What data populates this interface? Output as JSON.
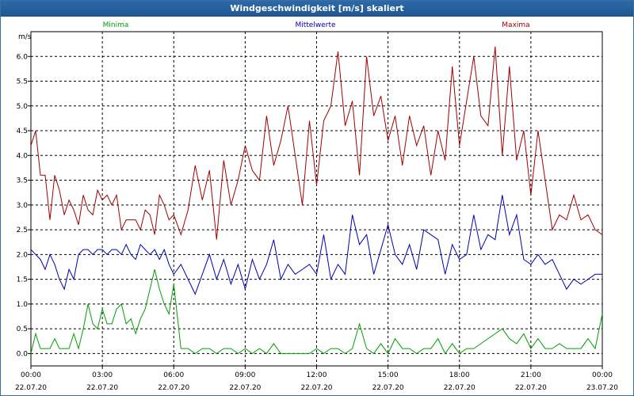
{
  "window": {
    "title": "Windgeschwindigkeit [m/s] skaliert"
  },
  "colors": {
    "minima": "#00a000",
    "mittel": "#0000b0",
    "maxima": "#a00000",
    "grid": "#000000"
  },
  "chart_data": {
    "type": "line",
    "title": "Windgeschwindigkeit [m/s] skaliert",
    "ylabel": "m/s",
    "xlabel": "",
    "ylim": [
      -0.25,
      6.5
    ],
    "yticks": [
      0.0,
      0.5,
      1.0,
      1.5,
      2.0,
      2.5,
      3.0,
      3.5,
      4.0,
      4.5,
      5.0,
      5.5,
      6.0
    ],
    "ytick_labels": [
      "0.0",
      "0.5",
      "1.0",
      "1.5",
      "2.0",
      "2.5",
      "3.0",
      "3.5",
      "4.0",
      "4.5",
      "5.0",
      "5.5",
      "6.0"
    ],
    "xlim": [
      0,
      24
    ],
    "xticks": [
      {
        "time": "00:00",
        "date": "22.07.20"
      },
      {
        "time": "03:00",
        "date": "22.07.20"
      },
      {
        "time": "06:00",
        "date": "22.07.20"
      },
      {
        "time": "09:00",
        "date": "22.07.20"
      },
      {
        "time": "12:00",
        "date": "22.07.20"
      },
      {
        "time": "15:00",
        "date": "22.07.20"
      },
      {
        "time": "18:00",
        "date": "22.07.20"
      },
      {
        "time": "21:00",
        "date": "22.07.20"
      },
      {
        "time": "00:00",
        "date": "23.07.20"
      }
    ],
    "grid": true,
    "legend_position": "top",
    "series": [
      {
        "name": "Minima",
        "x": [
          0.0,
          0.2,
          0.4,
          0.6,
          0.8,
          1.0,
          1.2,
          1.4,
          1.6,
          1.8,
          2.0,
          2.2,
          2.4,
          2.6,
          2.8,
          3.0,
          3.2,
          3.4,
          3.6,
          3.8,
          4.0,
          4.2,
          4.4,
          4.6,
          4.8,
          5.0,
          5.2,
          5.4,
          5.6,
          5.8,
          6.0,
          6.3,
          6.6,
          6.9,
          7.2,
          7.5,
          7.8,
          8.1,
          8.4,
          8.7,
          9.0,
          9.3,
          9.6,
          9.9,
          10.2,
          10.5,
          10.8,
          11.1,
          11.4,
          11.7,
          12.0,
          12.3,
          12.6,
          12.9,
          13.2,
          13.5,
          13.8,
          14.1,
          14.4,
          14.7,
          15.0,
          15.3,
          15.6,
          15.9,
          16.2,
          16.5,
          16.8,
          17.1,
          17.4,
          17.7,
          18.0,
          18.3,
          18.6,
          18.9,
          19.2,
          19.5,
          19.8,
          20.1,
          20.4,
          20.7,
          21.0,
          21.3,
          21.6,
          21.9,
          22.2,
          22.5,
          22.8,
          23.1,
          23.4,
          23.7,
          24.0
        ],
        "values": [
          0.0,
          0.4,
          0.1,
          0.1,
          0.1,
          0.3,
          0.1,
          0.1,
          0.1,
          0.4,
          0.1,
          0.5,
          1.0,
          0.6,
          0.5,
          0.9,
          0.6,
          0.6,
          0.9,
          1.0,
          0.6,
          0.7,
          0.4,
          0.7,
          0.9,
          1.3,
          1.7,
          1.3,
          1.0,
          0.8,
          1.4,
          0.1,
          0.1,
          0.0,
          0.1,
          0.1,
          0.0,
          0.1,
          0.1,
          0.0,
          0.1,
          0.0,
          0.1,
          0.0,
          0.2,
          0.0,
          0.0,
          0.0,
          0.0,
          0.0,
          0.1,
          0.0,
          0.1,
          0.1,
          0.0,
          0.1,
          0.6,
          0.1,
          0.0,
          0.2,
          0.0,
          0.3,
          0.1,
          0.1,
          0.0,
          0.1,
          0.1,
          0.3,
          0.0,
          0.2,
          0.0,
          0.1,
          0.1,
          0.2,
          0.3,
          0.4,
          0.5,
          0.3,
          0.2,
          0.4,
          0.1,
          0.3,
          0.1,
          0.1,
          0.2,
          0.1,
          0.1,
          0.1,
          0.3,
          0.1,
          0.8
        ]
      },
      {
        "name": "Mittelwerte",
        "x": [
          0.0,
          0.2,
          0.4,
          0.6,
          0.8,
          1.0,
          1.2,
          1.4,
          1.6,
          1.8,
          2.0,
          2.2,
          2.4,
          2.6,
          2.8,
          3.0,
          3.2,
          3.4,
          3.6,
          3.8,
          4.0,
          4.2,
          4.4,
          4.6,
          4.8,
          5.0,
          5.2,
          5.4,
          5.6,
          5.8,
          6.0,
          6.3,
          6.6,
          6.9,
          7.2,
          7.5,
          7.8,
          8.1,
          8.4,
          8.7,
          9.0,
          9.3,
          9.6,
          9.9,
          10.2,
          10.5,
          10.8,
          11.1,
          11.4,
          11.7,
          12.0,
          12.3,
          12.6,
          12.9,
          13.2,
          13.5,
          13.8,
          14.1,
          14.4,
          14.7,
          15.0,
          15.3,
          15.6,
          15.9,
          16.2,
          16.5,
          16.8,
          17.1,
          17.4,
          17.7,
          18.0,
          18.3,
          18.6,
          18.9,
          19.2,
          19.5,
          19.8,
          20.1,
          20.4,
          20.7,
          21.0,
          21.3,
          21.6,
          21.9,
          22.2,
          22.5,
          22.8,
          23.1,
          23.4,
          23.7,
          24.0
        ],
        "values": [
          2.1,
          2.0,
          1.9,
          1.7,
          2.0,
          1.8,
          1.5,
          1.3,
          1.7,
          1.5,
          2.0,
          2.1,
          2.1,
          2.0,
          2.1,
          2.1,
          2.0,
          2.1,
          2.1,
          2.0,
          2.2,
          2.0,
          1.9,
          2.2,
          2.1,
          2.0,
          2.1,
          1.9,
          2.1,
          1.8,
          1.6,
          1.8,
          1.5,
          1.2,
          1.6,
          2.0,
          1.5,
          1.9,
          1.4,
          1.8,
          1.3,
          1.9,
          1.5,
          1.8,
          2.3,
          1.5,
          1.8,
          1.6,
          1.7,
          1.8,
          1.6,
          2.4,
          1.5,
          1.8,
          1.6,
          2.8,
          2.2,
          2.4,
          1.6,
          2.1,
          2.6,
          2.0,
          1.8,
          2.2,
          1.7,
          2.5,
          2.4,
          2.3,
          1.6,
          2.2,
          1.9,
          2.0,
          2.8,
          2.1,
          2.4,
          2.3,
          3.2,
          2.4,
          2.8,
          1.9,
          1.8,
          2.0,
          1.8,
          1.9,
          1.6,
          1.3,
          1.5,
          1.4,
          1.5,
          1.6,
          1.6
        ]
      },
      {
        "name": "Maxima",
        "x": [
          0.0,
          0.2,
          0.4,
          0.6,
          0.8,
          1.0,
          1.2,
          1.4,
          1.6,
          1.8,
          2.0,
          2.2,
          2.4,
          2.6,
          2.8,
          3.0,
          3.2,
          3.4,
          3.6,
          3.8,
          4.0,
          4.2,
          4.4,
          4.6,
          4.8,
          5.0,
          5.2,
          5.4,
          5.6,
          5.8,
          6.0,
          6.3,
          6.6,
          6.9,
          7.2,
          7.5,
          7.8,
          8.1,
          8.4,
          8.7,
          9.0,
          9.3,
          9.6,
          9.9,
          10.2,
          10.5,
          10.8,
          11.1,
          11.4,
          11.7,
          12.0,
          12.3,
          12.6,
          12.9,
          13.2,
          13.5,
          13.8,
          14.1,
          14.4,
          14.7,
          15.0,
          15.3,
          15.6,
          15.9,
          16.2,
          16.5,
          16.8,
          17.1,
          17.4,
          17.7,
          18.0,
          18.3,
          18.6,
          18.9,
          19.2,
          19.5,
          19.8,
          20.1,
          20.4,
          20.7,
          21.0,
          21.3,
          21.6,
          21.9,
          22.2,
          22.5,
          22.8,
          23.1,
          23.4,
          23.7,
          24.0
        ],
        "values": [
          4.2,
          4.5,
          3.6,
          3.6,
          2.7,
          3.6,
          3.3,
          2.8,
          3.1,
          2.9,
          2.6,
          3.2,
          2.9,
          2.8,
          3.3,
          3.1,
          3.2,
          3.0,
          3.2,
          2.5,
          2.7,
          2.7,
          2.7,
          2.5,
          2.9,
          2.8,
          2.4,
          3.2,
          3.0,
          2.7,
          2.8,
          2.4,
          2.9,
          3.8,
          3.1,
          3.7,
          2.3,
          3.9,
          3.0,
          3.5,
          4.2,
          3.7,
          3.5,
          4.8,
          3.8,
          4.3,
          5.0,
          4.0,
          3.0,
          4.7,
          3.4,
          4.7,
          5.0,
          6.1,
          4.6,
          5.1,
          3.6,
          6.0,
          4.8,
          5.2,
          4.3,
          4.8,
          3.8,
          4.8,
          4.2,
          4.6,
          3.6,
          4.5,
          3.9,
          5.8,
          4.2,
          5.1,
          6.0,
          4.8,
          4.6,
          6.2,
          4.0,
          5.8,
          3.9,
          4.5,
          3.2,
          4.5,
          3.5,
          2.5,
          2.8,
          2.7,
          3.2,
          2.7,
          2.8,
          2.5,
          2.4
        ]
      }
    ]
  }
}
